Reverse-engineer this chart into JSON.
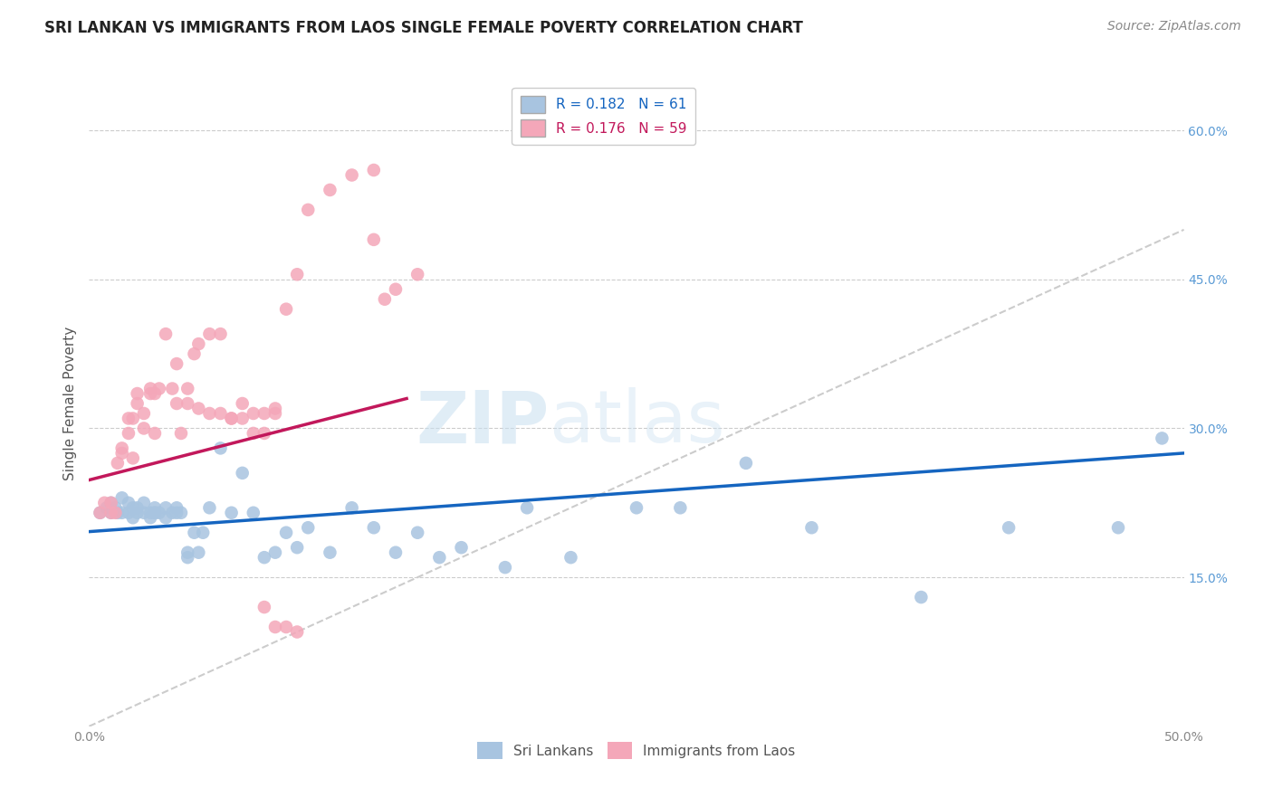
{
  "title": "SRI LANKAN VS IMMIGRANTS FROM LAOS SINGLE FEMALE POVERTY CORRELATION CHART",
  "source": "Source: ZipAtlas.com",
  "ylabel": "Single Female Poverty",
  "xmin": 0.0,
  "xmax": 0.5,
  "ymin": 0.0,
  "ymax": 0.65,
  "sri_color": "#a8c4e0",
  "laos_color": "#f4a7b9",
  "sri_line_color": "#1565c0",
  "laos_line_color": "#c2185b",
  "diagonal_color": "#cccccc",
  "background_color": "#ffffff",
  "sri_lankans_x": [
    0.005,
    0.008,
    0.01,
    0.01,
    0.012,
    0.013,
    0.015,
    0.015,
    0.018,
    0.018,
    0.02,
    0.02,
    0.022,
    0.022,
    0.025,
    0.025,
    0.028,
    0.028,
    0.03,
    0.03,
    0.03,
    0.032,
    0.035,
    0.035,
    0.038,
    0.04,
    0.04,
    0.042,
    0.045,
    0.045,
    0.048,
    0.05,
    0.052,
    0.055,
    0.06,
    0.065,
    0.07,
    0.075,
    0.08,
    0.085,
    0.09,
    0.095,
    0.1,
    0.11,
    0.12,
    0.13,
    0.14,
    0.15,
    0.16,
    0.17,
    0.19,
    0.2,
    0.22,
    0.25,
    0.27,
    0.3,
    0.33,
    0.38,
    0.42,
    0.47,
    0.49
  ],
  "sri_lankans_y": [
    0.215,
    0.22,
    0.215,
    0.225,
    0.22,
    0.215,
    0.23,
    0.215,
    0.225,
    0.215,
    0.22,
    0.21,
    0.215,
    0.22,
    0.215,
    0.225,
    0.215,
    0.21,
    0.22,
    0.215,
    0.215,
    0.215,
    0.21,
    0.22,
    0.215,
    0.215,
    0.22,
    0.215,
    0.17,
    0.175,
    0.195,
    0.175,
    0.195,
    0.22,
    0.28,
    0.215,
    0.255,
    0.215,
    0.17,
    0.175,
    0.195,
    0.18,
    0.2,
    0.175,
    0.22,
    0.2,
    0.175,
    0.195,
    0.17,
    0.18,
    0.16,
    0.22,
    0.17,
    0.22,
    0.22,
    0.265,
    0.2,
    0.13,
    0.2,
    0.2,
    0.29
  ],
  "laos_x": [
    0.005,
    0.007,
    0.01,
    0.01,
    0.012,
    0.013,
    0.015,
    0.015,
    0.018,
    0.018,
    0.02,
    0.02,
    0.022,
    0.022,
    0.025,
    0.025,
    0.028,
    0.028,
    0.03,
    0.03,
    0.032,
    0.035,
    0.038,
    0.04,
    0.042,
    0.045,
    0.048,
    0.05,
    0.055,
    0.06,
    0.065,
    0.07,
    0.075,
    0.08,
    0.085,
    0.09,
    0.095,
    0.1,
    0.11,
    0.12,
    0.13,
    0.13,
    0.135,
    0.14,
    0.15,
    0.06,
    0.065,
    0.07,
    0.075,
    0.08,
    0.085,
    0.04,
    0.045,
    0.05,
    0.055,
    0.08,
    0.085,
    0.09,
    0.095
  ],
  "laos_y": [
    0.215,
    0.225,
    0.215,
    0.225,
    0.215,
    0.265,
    0.275,
    0.28,
    0.295,
    0.31,
    0.27,
    0.31,
    0.325,
    0.335,
    0.3,
    0.315,
    0.335,
    0.34,
    0.295,
    0.335,
    0.34,
    0.395,
    0.34,
    0.365,
    0.295,
    0.34,
    0.375,
    0.385,
    0.395,
    0.395,
    0.31,
    0.31,
    0.295,
    0.295,
    0.32,
    0.42,
    0.455,
    0.52,
    0.54,
    0.555,
    0.56,
    0.49,
    0.43,
    0.44,
    0.455,
    0.315,
    0.31,
    0.325,
    0.315,
    0.315,
    0.315,
    0.325,
    0.325,
    0.32,
    0.315,
    0.12,
    0.1,
    0.1,
    0.095
  ],
  "watermark_zip": "ZIP",
  "watermark_atlas": "atlas",
  "title_fontsize": 12,
  "source_fontsize": 10,
  "label_fontsize": 11,
  "tick_fontsize": 10,
  "legend_fontsize": 11
}
